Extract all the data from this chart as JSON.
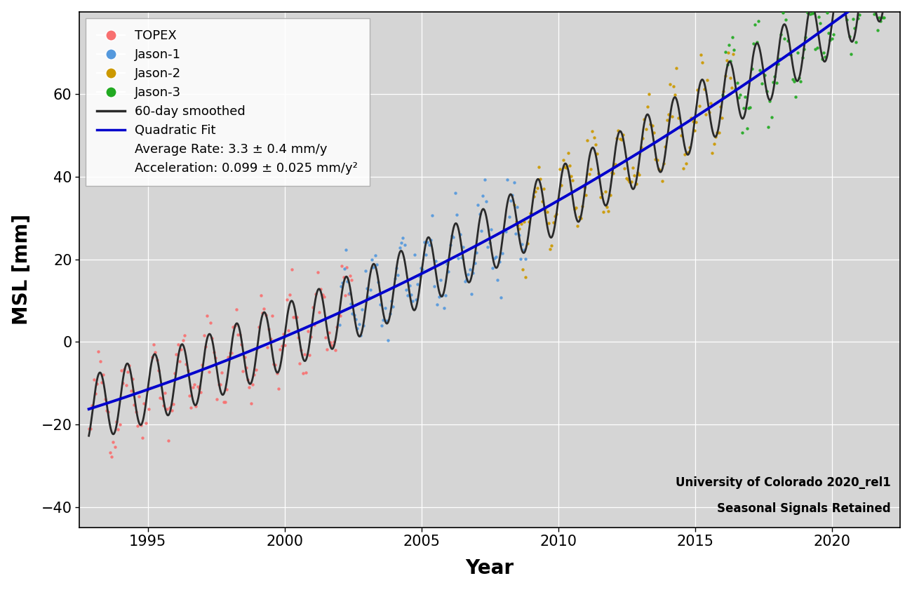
{
  "xlabel": "Year",
  "ylabel": "MSL [mm]",
  "xlim": [
    1992.5,
    2022.5
  ],
  "ylim": [
    -45,
    80
  ],
  "yticks": [
    -40,
    -20,
    0,
    20,
    40,
    60
  ],
  "xticks": [
    1995,
    2000,
    2005,
    2010,
    2015,
    2020
  ],
  "background_color": "#d5d5d5",
  "figure_facecolor": "#ffffff",
  "satellite_colors": {
    "TOPEX": "#f87070",
    "Jason-1": "#5599dd",
    "Jason-2": "#cc9900",
    "Jason-3": "#22aa22"
  },
  "smoothed_color": "#2a2a2a",
  "quadratic_color": "#0000cc",
  "avg_rate": "3.3 ± 0.4 mm/y",
  "acceleration": "0.099 ± 0.025 mm/y²",
  "watermark_line1": "University of Colorado 2020_rel1",
  "watermark_line2": "Seasonal Signals Retained",
  "satellite_ranges": {
    "TOPEX": [
      1992.85,
      2002.45
    ],
    "Jason-1": [
      2002.0,
      2008.8
    ],
    "Jason-2": [
      2008.4,
      2016.4
    ],
    "Jason-3": [
      2016.0,
      2022.2
    ]
  },
  "quadratic_params": {
    "t0": 2005.0,
    "a": 0.0495,
    "b": 3.3,
    "c": 16.5
  },
  "seasonal_amp": 8.0,
  "noise_scatter": 3.5,
  "n_per_year": 17,
  "smoothed_n_per_year": 200
}
